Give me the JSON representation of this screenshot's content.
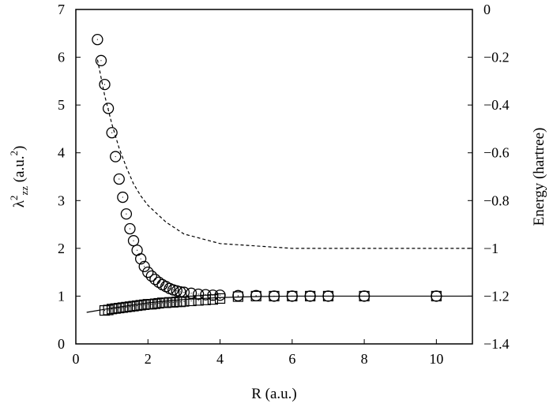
{
  "chart_data": {
    "type": "scatter",
    "xlabel": "R (a.u.)",
    "ylabel_parts": [
      "λ",
      "2",
      "zz",
      " (a.u.",
      "2",
      ")"
    ],
    "y2label": "Energy (hartree)",
    "xlim": [
      0,
      11
    ],
    "ylim": [
      0,
      7
    ],
    "y2lim": [
      -1.4,
      0
    ],
    "xticks": [
      "0",
      "2",
      "4",
      "6",
      "8",
      "10"
    ],
    "yticks": [
      "0",
      "1",
      "2",
      "3",
      "4",
      "5",
      "6",
      "7"
    ],
    "y2ticks": [
      "−1.4",
      "−1.2",
      "−1",
      "−0.8",
      "−0.6",
      "−0.4",
      "−0.2",
      "0"
    ],
    "grid": false,
    "series": [
      {
        "marker": "circle",
        "axis": "left",
        "x": [
          0.6,
          0.7,
          0.8,
          0.9,
          1.0,
          1.1,
          1.2,
          1.3,
          1.4,
          1.5,
          1.6,
          1.7,
          1.8,
          1.9,
          2.0,
          2.1,
          2.2,
          2.3,
          2.4,
          2.5,
          2.6,
          2.7,
          2.8,
          2.9,
          3.0,
          3.2,
          3.4,
          3.6,
          3.8,
          4.0,
          4.5,
          5,
          5.5,
          6,
          6.5,
          7,
          8,
          10
        ],
        "y": [
          6.37,
          5.93,
          5.43,
          4.93,
          4.42,
          3.92,
          3.45,
          3.07,
          2.72,
          2.41,
          2.16,
          1.96,
          1.78,
          1.62,
          1.5,
          1.42,
          1.35,
          1.29,
          1.24,
          1.2,
          1.16,
          1.13,
          1.11,
          1.09,
          1.08,
          1.06,
          1.04,
          1.03,
          1.02,
          1.02,
          1.01,
          1.01,
          1.0,
          1.0,
          1.0,
          1.0,
          1.0,
          1.0
        ]
      },
      {
        "marker": "square",
        "axis": "left",
        "x": [
          0.8,
          0.9,
          1.0,
          1.1,
          1.2,
          1.3,
          1.4,
          1.5,
          1.6,
          1.7,
          1.8,
          1.9,
          2.0,
          2.1,
          2.2,
          2.3,
          2.4,
          2.5,
          2.6,
          2.7,
          2.8,
          2.9,
          3.0,
          3.2,
          3.4,
          3.6,
          3.8,
          4.0,
          4.5,
          5,
          5.5,
          6,
          6.5,
          7,
          8,
          10
        ],
        "y": [
          0.7,
          0.71,
          0.73,
          0.74,
          0.75,
          0.76,
          0.77,
          0.78,
          0.79,
          0.8,
          0.81,
          0.82,
          0.83,
          0.83,
          0.84,
          0.85,
          0.86,
          0.86,
          0.87,
          0.87,
          0.88,
          0.88,
          0.89,
          0.9,
          0.91,
          0.92,
          0.93,
          0.95,
          0.99,
          1.0,
          1.0,
          1.0,
          1.0,
          1.0,
          1.0,
          1.0
        ]
      },
      {
        "line": "dashed",
        "axis": "right",
        "x": [
          0.6,
          0.8,
          1.0,
          1.2,
          1.4,
          1.6,
          1.8,
          2.0,
          2.5,
          3.0,
          3.5,
          4.0,
          5.0,
          6.0,
          11.0
        ],
        "y": [
          -0.21,
          -0.36,
          -0.48,
          -0.58,
          -0.66,
          -0.73,
          -0.78,
          -0.82,
          -0.89,
          -0.94,
          -0.96,
          -0.98,
          -0.99,
          -1.0,
          -1.0
        ]
      },
      {
        "line": "solid",
        "axis": "right",
        "x": [
          0.3,
          1.0,
          2.0,
          3.0,
          4.0,
          5.0,
          6.0,
          11.0
        ],
        "y": [
          -1.268,
          -1.25,
          -1.228,
          -1.214,
          -1.206,
          -1.202,
          -1.2,
          -1.2
        ]
      }
    ]
  }
}
